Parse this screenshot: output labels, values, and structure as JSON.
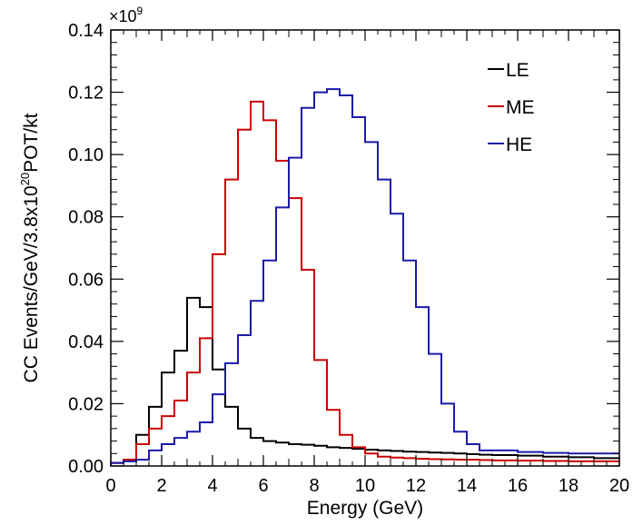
{
  "chart_data": {
    "type": "line",
    "style": "step-histogram",
    "xlabel": "Energy (GeV)",
    "ylabel_parts": {
      "before": "CC Events/GeV/3.8x10",
      "exponent": "20",
      "after": "POT/kt"
    },
    "multiplier": {
      "base": "×10",
      "exponent": "9"
    },
    "xlim": [
      0,
      20
    ],
    "ylim": [
      0,
      0.14
    ],
    "x_ticks": [
      "0",
      "2",
      "4",
      "6",
      "8",
      "10",
      "12",
      "14",
      "16",
      "18",
      "20"
    ],
    "y_ticks": [
      "0.00",
      "0.02",
      "0.04",
      "0.06",
      "0.08",
      "0.10",
      "0.12",
      "0.14"
    ],
    "grid": false,
    "legend_position": "top-right",
    "bin_edges": [
      0,
      0.5,
      1,
      1.5,
      2,
      2.5,
      3,
      3.5,
      4,
      4.5,
      5,
      5.5,
      6,
      6.5,
      7,
      7.5,
      8,
      8.5,
      9,
      9.5,
      10,
      10.5,
      11,
      11.5,
      12,
      12.5,
      13,
      13.5,
      14,
      14.5,
      15,
      16,
      17,
      18,
      19,
      20
    ],
    "series": [
      {
        "name": "LE",
        "color": "#000000",
        "values": [
          0.001,
          0.002,
          0.01,
          0.019,
          0.03,
          0.037,
          0.054,
          0.051,
          0.031,
          0.019,
          0.012,
          0.009,
          0.008,
          0.0075,
          0.007,
          0.0068,
          0.0065,
          0.006,
          0.0058,
          0.0055,
          0.0052,
          0.005,
          0.0048,
          0.0046,
          0.0045,
          0.0043,
          0.0042,
          0.004,
          0.0038,
          0.0036,
          0.0035,
          0.0033,
          0.003,
          0.0028,
          0.0025
        ]
      },
      {
        "name": "ME",
        "color": "#cc0000",
        "values": [
          0.001,
          0.002,
          0.007,
          0.012,
          0.016,
          0.021,
          0.03,
          0.041,
          0.068,
          0.092,
          0.108,
          0.117,
          0.111,
          0.098,
          0.086,
          0.063,
          0.034,
          0.018,
          0.01,
          0.006,
          0.004,
          0.003,
          0.0027,
          0.0025,
          0.0023,
          0.0022,
          0.0021,
          0.002,
          0.002,
          0.0019,
          0.0018,
          0.0017,
          0.0016,
          0.0015,
          0.0015
        ]
      },
      {
        "name": "HE",
        "color": "#1a1aaa",
        "values": [
          0.001,
          0.0015,
          0.002,
          0.005,
          0.007,
          0.009,
          0.011,
          0.014,
          0.023,
          0.033,
          0.042,
          0.053,
          0.066,
          0.083,
          0.099,
          0.115,
          0.12,
          0.121,
          0.119,
          0.112,
          0.104,
          0.092,
          0.081,
          0.066,
          0.051,
          0.036,
          0.02,
          0.011,
          0.007,
          0.005,
          0.005,
          0.0045,
          0.0042,
          0.004,
          0.004
        ]
      }
    ]
  }
}
